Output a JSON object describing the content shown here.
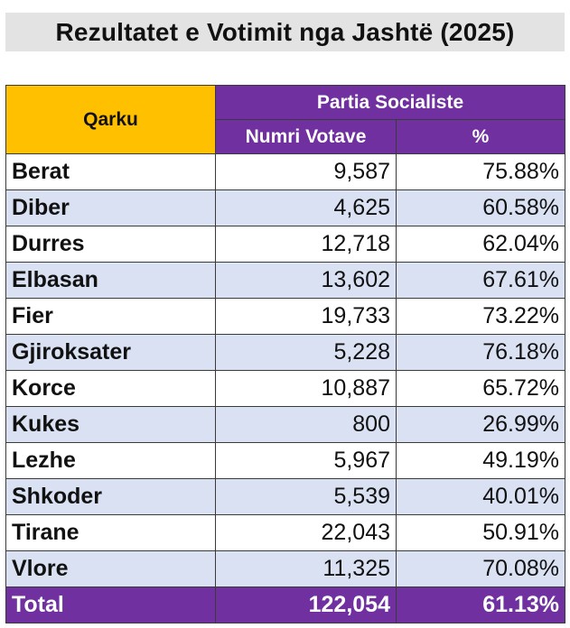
{
  "title": "Rezultatet e Votimit nga Jashtë (2025)",
  "colors": {
    "header_orange": "#ffc000",
    "header_purple": "#7030a0",
    "row_alt": "#d9e1f2",
    "title_bg": "#e3e3e3"
  },
  "table": {
    "col_qark": "Qarku",
    "party": "Partia Socialiste",
    "col_votes": "Numri Votave",
    "col_pct": "%",
    "rows": [
      {
        "qark": "Berat",
        "votes": "9,587",
        "pct": "75.88%"
      },
      {
        "qark": "Diber",
        "votes": "4,625",
        "pct": "60.58%"
      },
      {
        "qark": "Durres",
        "votes": "12,718",
        "pct": "62.04%"
      },
      {
        "qark": "Elbasan",
        "votes": "13,602",
        "pct": "67.61%"
      },
      {
        "qark": "Fier",
        "votes": "19,733",
        "pct": "73.22%"
      },
      {
        "qark": "Gjiroksater",
        "votes": "5,228",
        "pct": "76.18%"
      },
      {
        "qark": "Korce",
        "votes": "10,887",
        "pct": "65.72%"
      },
      {
        "qark": "Kukes",
        "votes": "800",
        "pct": "26.99%"
      },
      {
        "qark": "Lezhe",
        "votes": "5,967",
        "pct": "49.19%"
      },
      {
        "qark": "Shkoder",
        "votes": "5,539",
        "pct": "40.01%"
      },
      {
        "qark": "Tirane",
        "votes": "22,043",
        "pct": "50.91%"
      },
      {
        "qark": "Vlore",
        "votes": "11,325",
        "pct": "70.08%"
      }
    ],
    "total": {
      "label": "Total",
      "votes": "122,054",
      "pct": "61.13%"
    }
  }
}
